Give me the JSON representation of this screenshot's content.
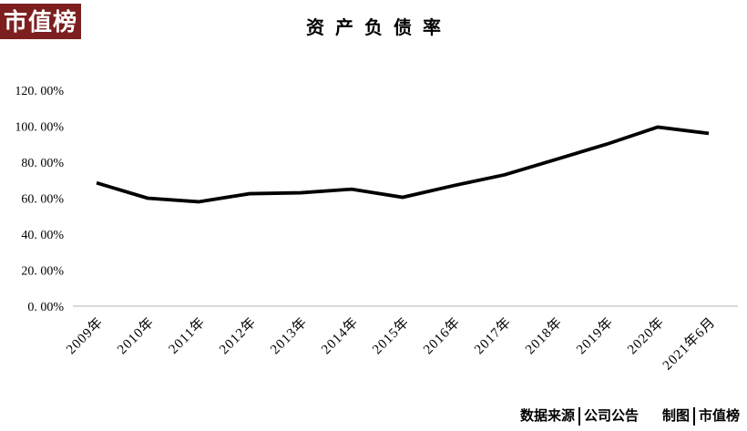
{
  "logo": {
    "text": "市值榜",
    "bg_color": "#7d1f1f",
    "text_color": "#ffffff"
  },
  "chart_data": {
    "type": "line",
    "title": "资产负债率",
    "categories": [
      "2009年",
      "2010年",
      "2011年",
      "2012年",
      "2013年",
      "2014年",
      "2015年",
      "2016年",
      "2017年",
      "2018年",
      "2019年",
      "2020年",
      "2021年6月"
    ],
    "values": [
      68.5,
      60,
      58,
      62.5,
      63,
      65,
      60.5,
      67,
      73,
      81.5,
      90,
      99.5,
      96
    ],
    "unit": "%",
    "y_ticks": [
      0,
      20,
      40,
      60,
      80,
      100,
      120
    ],
    "y_tick_labels": [
      "0. 00%",
      "20. 00%",
      "40. 00%",
      "60. 00%",
      "80. 00%",
      "100. 00%",
      "120. 00%"
    ],
    "ylim": [
      0,
      120
    ],
    "xlabel": "",
    "ylabel": "",
    "grid": false,
    "legend": "none",
    "line_color": "#000000",
    "axis_color": "#d9d9d9"
  },
  "footer": {
    "source_label": "数据来源",
    "source_value": "公司公告",
    "credit_label": "制图",
    "credit_value": "市值榜"
  }
}
